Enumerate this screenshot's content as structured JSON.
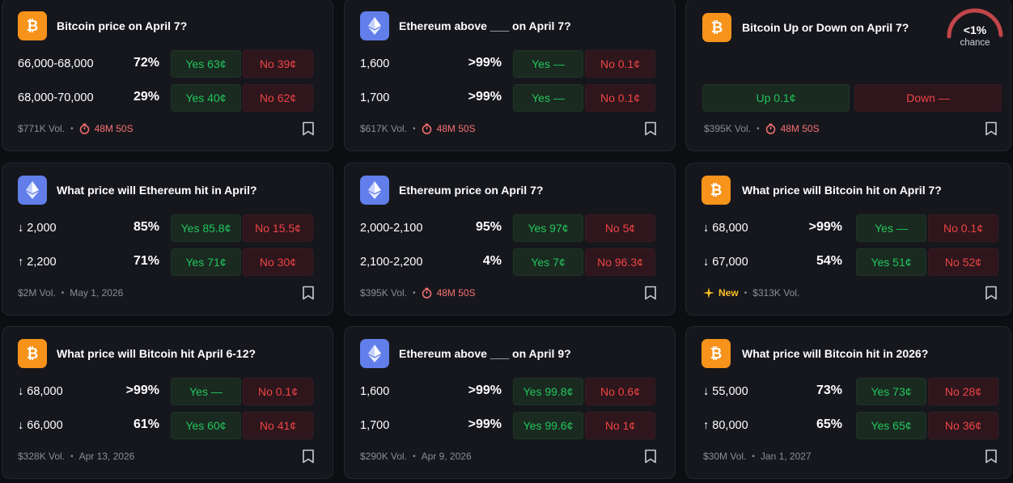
{
  "cards": [
    {
      "title": "Bitcoin price on April 7?",
      "icon": "bitcoin-icon",
      "rows": [
        {
          "label": "66,000-68,000",
          "pct": "72%",
          "yes": "Yes 63¢",
          "no": "No 39¢"
        },
        {
          "label": "68,000-70,000",
          "pct": "29%",
          "yes": "Yes 40¢",
          "no": "No 62¢"
        }
      ],
      "footer": {
        "vol": "$771K Vol.",
        "timer": "48M 50S"
      }
    },
    {
      "title": "Ethereum above ___ on April 7?",
      "icon": "ethereum-icon",
      "rows": [
        {
          "label": "1,600",
          "pct": ">99%",
          "yes": "Yes —",
          "no": "No 0.1¢"
        },
        {
          "label": "1,700",
          "pct": ">99%",
          "yes": "Yes —",
          "no": "No 0.1¢"
        }
      ],
      "footer": {
        "vol": "$617K Vol.",
        "timer": "48M 50S"
      }
    },
    {
      "title": "Bitcoin Up or Down on April 7?",
      "icon": "bitcoin-icon",
      "gauge": {
        "value": "<1%",
        "label": "chance",
        "fraction": 0.01
      },
      "up": "Up 0.1¢",
      "down": "Down —",
      "footer": {
        "vol": "$395K Vol.",
        "timer": "48M 50S"
      }
    },
    {
      "title": "What price will Ethereum hit in April?",
      "icon": "ethereum-icon",
      "rows": [
        {
          "arrow": "↓",
          "label": "2,000",
          "pct": "85%",
          "yes": "Yes 85.8¢",
          "no": "No 15.5¢"
        },
        {
          "arrow": "↑",
          "label": "2,200",
          "pct": "71%",
          "yes": "Yes 71¢",
          "no": "No 30¢"
        }
      ],
      "footer": {
        "vol": "$2M Vol.",
        "date": "May 1, 2026"
      }
    },
    {
      "title": "Ethereum price on April 7?",
      "icon": "ethereum-icon",
      "rows": [
        {
          "label": "2,000-2,100",
          "pct": "95%",
          "yes": "Yes 97¢",
          "no": "No 5¢"
        },
        {
          "label": "2,100-2,200",
          "pct": "4%",
          "yes": "Yes 7¢",
          "no": "No 96.3¢"
        }
      ],
      "footer": {
        "vol": "$395K Vol.",
        "timer": "48M 50S"
      }
    },
    {
      "title": "What price will Bitcoin hit on April 7?",
      "icon": "bitcoin-icon",
      "rows": [
        {
          "arrow": "↓",
          "label": "68,000",
          "pct": ">99%",
          "yes": "Yes —",
          "no": "No 0.1¢"
        },
        {
          "arrow": "↓",
          "label": "67,000",
          "pct": "54%",
          "yes": "Yes 51¢",
          "no": "No 52¢"
        }
      ],
      "footer": {
        "new": "New",
        "vol": "$313K Vol."
      }
    },
    {
      "title": "What price will Bitcoin hit April 6-12?",
      "icon": "bitcoin-icon",
      "rows": [
        {
          "arrow": "↓",
          "label": "68,000",
          "pct": ">99%",
          "yes": "Yes —",
          "no": "No 0.1¢"
        },
        {
          "arrow": "↓",
          "label": "66,000",
          "pct": "61%",
          "yes": "Yes 60¢",
          "no": "No 41¢"
        }
      ],
      "footer": {
        "vol": "$328K Vol.",
        "date": "Apr 13, 2026"
      }
    },
    {
      "title": "Ethereum above ___ on April 9?",
      "icon": "ethereum-icon",
      "rows": [
        {
          "label": "1,600",
          "pct": ">99%",
          "yes": "Yes 99.8¢",
          "no": "No 0.6¢"
        },
        {
          "label": "1,700",
          "pct": ">99%",
          "yes": "Yes 99.6¢",
          "no": "No 1¢"
        }
      ],
      "footer": {
        "vol": "$290K Vol.",
        "date": "Apr 9, 2026"
      }
    },
    {
      "title": "What price will Bitcoin hit in 2026?",
      "icon": "bitcoin-icon",
      "rows": [
        {
          "arrow": "↓",
          "label": "55,000",
          "pct": "73%",
          "yes": "Yes 73¢",
          "no": "No 28¢"
        },
        {
          "arrow": "↑",
          "label": "80,000",
          "pct": "65%",
          "yes": "Yes 65¢",
          "no": "No 36¢"
        }
      ],
      "footer": {
        "vol": "$30M Vol.",
        "date": "Jan 1, 2027"
      }
    }
  ],
  "colors": {
    "yes": "#22c55e",
    "no": "#ef4444",
    "timer": "#f87171",
    "new": "#fbbf24",
    "bitcoin": "#f7931a",
    "ethereum": "#627eea",
    "gauge": "#c2464b"
  }
}
